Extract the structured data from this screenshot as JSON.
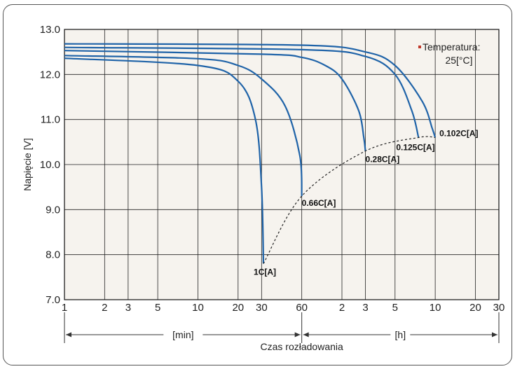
{
  "chart_data": {
    "type": "line",
    "xlabel": "Czas rozładowania",
    "ylabel": "Napięcie [V]",
    "ylim": [
      7.0,
      13.0
    ],
    "y_ticks": [
      "7.0",
      "8.0",
      "9.0",
      "10.0",
      "11.0",
      "12.0",
      "13.0"
    ],
    "x_scale": "log (minutes then hours)",
    "x_ticks_min": [
      "1",
      "2",
      "3",
      "5",
      "10",
      "20",
      "30",
      "60"
    ],
    "x_ticks_h": [
      "2",
      "3",
      "5",
      "10",
      "20",
      "30"
    ],
    "unit_min": "[min]",
    "unit_h": "[h]",
    "annotation": [
      "Temperatura:",
      "25[°C]"
    ],
    "colors": {
      "curve": "#1f63a8",
      "plot_bg": "#f6f3ee",
      "grid": "#222222",
      "dot": "#c0392b"
    },
    "series": [
      {
        "name": "1C[A]",
        "points": [
          [
            1,
            12.36
          ],
          [
            10,
            12.2
          ],
          [
            20,
            11.85
          ],
          [
            27,
            11.0
          ],
          [
            30,
            9.5
          ],
          [
            31,
            7.8
          ]
        ]
      },
      {
        "name": "0.66C[A]",
        "points": [
          [
            1,
            12.42
          ],
          [
            10,
            12.35
          ],
          [
            20,
            12.2
          ],
          [
            30,
            11.9
          ],
          [
            45,
            11.3
          ],
          [
            58,
            10.2
          ],
          [
            60,
            9.3
          ]
        ]
      },
      {
        "name": "0.28C[A]",
        "points": [
          [
            1,
            12.53
          ],
          [
            30,
            12.45
          ],
          [
            60,
            12.38
          ],
          [
            90,
            12.2
          ],
          [
            120,
            11.9
          ],
          [
            160,
            11.2
          ],
          [
            175,
            10.6
          ],
          [
            180,
            10.3
          ]
        ]
      },
      {
        "name": "0.125C[A]",
        "points": [
          [
            1,
            12.6
          ],
          [
            60,
            12.55
          ],
          [
            180,
            12.4
          ],
          [
            300,
            12.0
          ],
          [
            400,
            11.2
          ],
          [
            450,
            10.6
          ]
        ]
      },
      {
        "name": "0.102C[A]",
        "points": [
          [
            1,
            12.68
          ],
          [
            60,
            12.65
          ],
          [
            180,
            12.5
          ],
          [
            300,
            12.2
          ],
          [
            480,
            11.4
          ],
          [
            570,
            10.8
          ],
          [
            600,
            10.6
          ]
        ]
      }
    ],
    "cutoff_line": [
      [
        31,
        7.8
      ],
      [
        60,
        9.3
      ],
      [
        180,
        10.3
      ],
      [
        450,
        10.6
      ],
      [
        600,
        10.6
      ]
    ]
  }
}
